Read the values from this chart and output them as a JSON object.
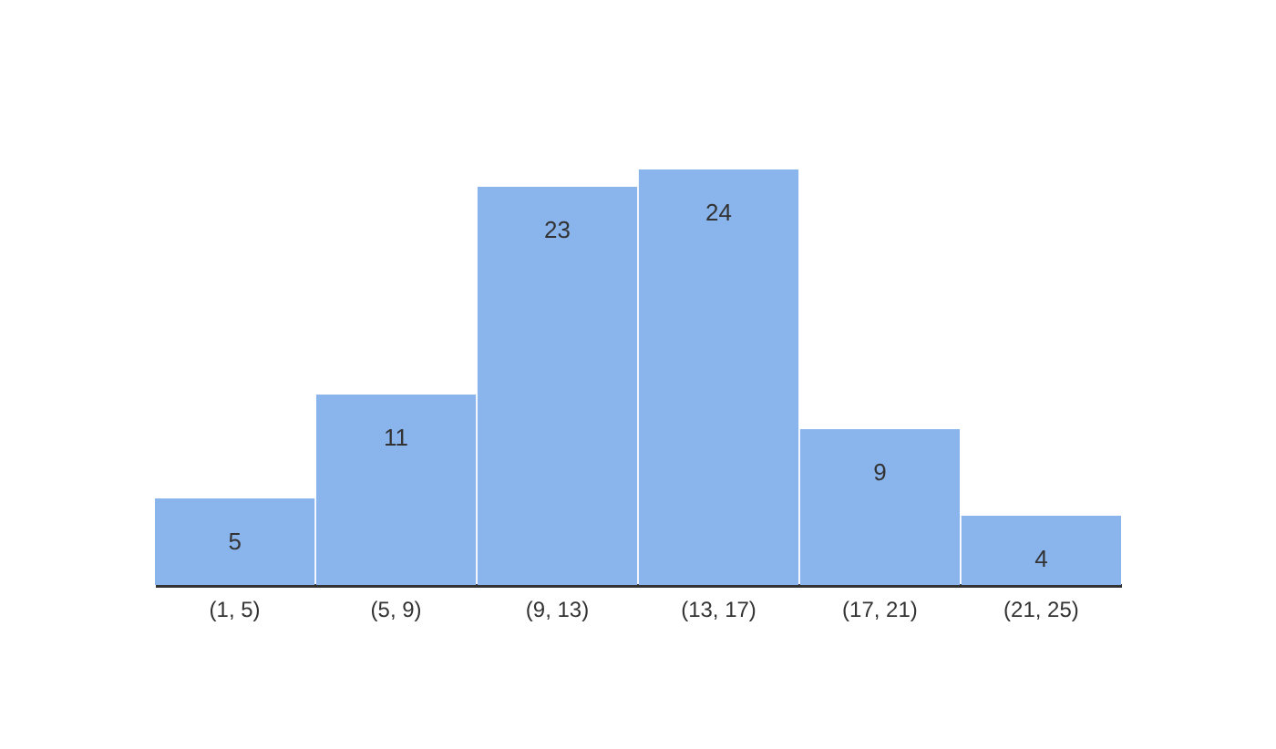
{
  "chart_data": {
    "type": "bar",
    "categories": [
      "(1, 5)",
      "(5, 9)",
      "(9, 13)",
      "(13, 17)",
      "(17, 21)",
      "(21, 25)"
    ],
    "values": [
      5,
      11,
      23,
      24,
      9,
      4
    ],
    "color": "#8ab4ec",
    "data_labels": true
  }
}
